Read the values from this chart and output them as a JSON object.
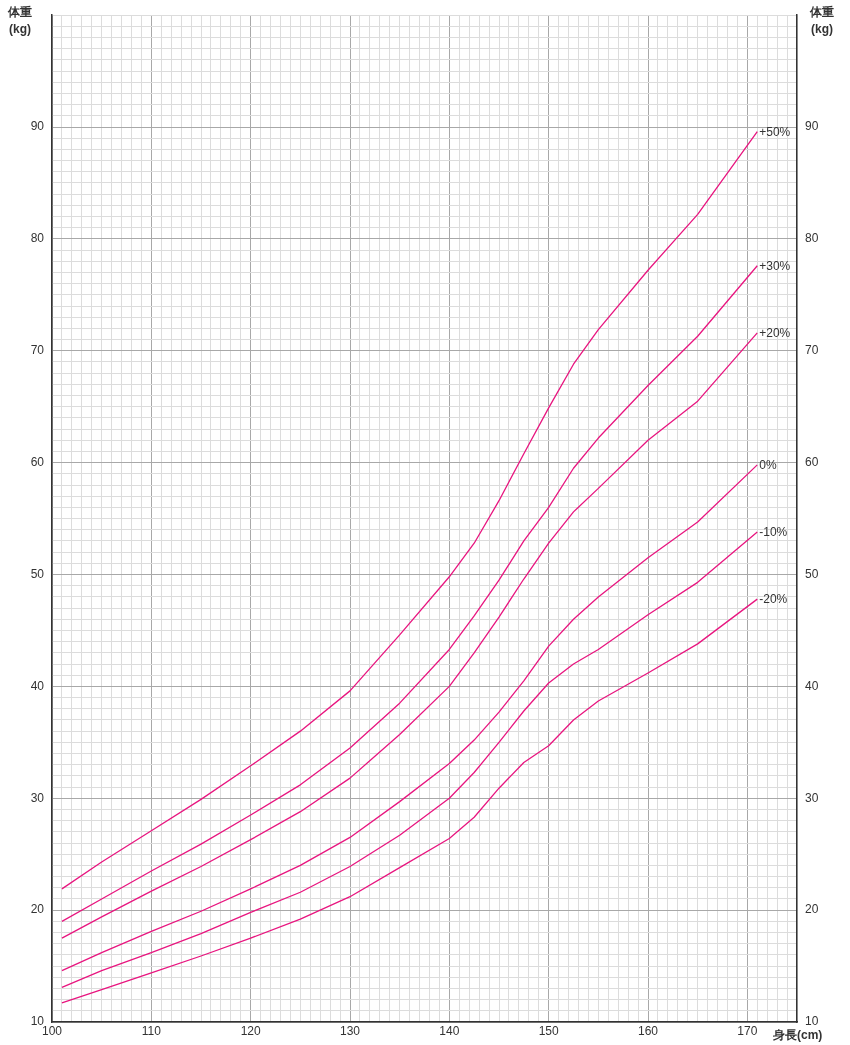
{
  "chart_data": {
    "type": "line",
    "xlabel": "身長(cm)",
    "ylabel": "体重\n(kg)",
    "y2label": "体重\n(kg)",
    "xlim": [
      100,
      175
    ],
    "ylim": [
      10,
      100
    ],
    "y2lim": [
      10,
      100
    ],
    "xticks": [
      100,
      {
        "value": 101,
        "label": null
      },
      {
        "value": 102,
        "label": null
      },
      {
        "value": 103,
        "label": null
      },
      {
        "value": 104,
        "label": null
      },
      {
        "value": 105,
        "label": null
      },
      {
        "value": 106,
        "label": null
      },
      {
        "value": 107,
        "label": null
      },
      {
        "value": 108,
        "label": null
      },
      {
        "value": 109,
        "label": null
      },
      110,
      {
        "value": 111,
        "label": null
      },
      {
        "value": 112,
        "label": null
      },
      {
        "value": 113,
        "label": null
      },
      {
        "value": 114,
        "label": null
      },
      {
        "value": 115,
        "label": null
      },
      {
        "value": 116,
        "label": null
      },
      {
        "value": 117,
        "label": null
      },
      {
        "value": 118,
        "label": null
      },
      {
        "value": 119,
        "label": null
      },
      120,
      {
        "value": 121,
        "label": null
      },
      {
        "value": 122,
        "label": null
      },
      {
        "value": 123,
        "label": null
      },
      {
        "value": 124,
        "label": null
      },
      {
        "value": 125,
        "label": null
      },
      {
        "value": 126,
        "label": null
      },
      {
        "value": 127,
        "label": null
      },
      {
        "value": 128,
        "label": null
      },
      {
        "value": 129,
        "label": null
      },
      130,
      {
        "value": 131,
        "label": null
      },
      {
        "value": 132,
        "label": null
      },
      {
        "value": 133,
        "label": null
      },
      {
        "value": 134,
        "label": null
      },
      {
        "value": 135,
        "label": null
      },
      {
        "value": 136,
        "label": null
      },
      {
        "value": 137,
        "label": null
      },
      {
        "value": 138,
        "label": null
      },
      {
        "value": 139,
        "label": null
      },
      140,
      {
        "value": 141,
        "label": null
      },
      {
        "value": 142,
        "label": null
      },
      {
        "value": 143,
        "label": null
      },
      {
        "value": 144,
        "label": null
      },
      {
        "value": 145,
        "label": null
      },
      {
        "value": 146,
        "label": null
      },
      {
        "value": 147,
        "label": null
      },
      {
        "value": 148,
        "label": null
      },
      {
        "value": 149,
        "label": null
      },
      150,
      {
        "value": 151,
        "label": null
      },
      {
        "value": 152,
        "label": null
      },
      {
        "value": 153,
        "label": null
      },
      {
        "value": 154,
        "label": null
      },
      {
        "value": 155,
        "label": null
      },
      {
        "value": 156,
        "label": null
      },
      {
        "value": 157,
        "label": null
      },
      {
        "value": 158,
        "label": null
      },
      {
        "value": 159,
        "label": null
      },
      160,
      {
        "value": 161,
        "label": null
      },
      {
        "value": 162,
        "label": null
      },
      {
        "value": 163,
        "label": null
      },
      {
        "value": 164,
        "label": null
      },
      {
        "value": 165,
        "label": null
      },
      {
        "value": 166,
        "label": null
      },
      {
        "value": 167,
        "label": null
      },
      {
        "value": 168,
        "label": null
      },
      {
        "value": 169,
        "label": null
      },
      170,
      {
        "value": 171,
        "label": null
      },
      {
        "value": 172,
        "label": null
      },
      {
        "value": 173,
        "label": null
      },
      {
        "value": 174,
        "label": null
      },
      {
        "value": 175,
        "label": null
      }
    ],
    "yticks": [
      10,
      {
        "value": 11,
        "label": null
      },
      {
        "value": 12,
        "label": null
      },
      {
        "value": 13,
        "label": null
      },
      {
        "value": 14,
        "label": null
      },
      {
        "value": 15,
        "label": null
      },
      {
        "value": 16,
        "label": null
      },
      {
        "value": 17,
        "label": null
      },
      {
        "value": 18,
        "label": null
      },
      {
        "value": 19,
        "label": null
      },
      20,
      {
        "value": 21,
        "label": null
      },
      {
        "value": 22,
        "label": null
      },
      {
        "value": 23,
        "label": null
      },
      {
        "value": 24,
        "label": null
      },
      {
        "value": 25,
        "label": null
      },
      {
        "value": 26,
        "label": null
      },
      {
        "value": 27,
        "label": null
      },
      {
        "value": 28,
        "label": null
      },
      {
        "value": 29,
        "label": null
      },
      30,
      {
        "value": 31,
        "label": null
      },
      {
        "value": 32,
        "label": null
      },
      {
        "value": 33,
        "label": null
      },
      {
        "value": 34,
        "label": null
      },
      {
        "value": 35,
        "label": null
      },
      {
        "value": 36,
        "label": null
      },
      {
        "value": 37,
        "label": null
      },
      {
        "value": 38,
        "label": null
      },
      {
        "value": 39,
        "label": null
      },
      40,
      {
        "value": 41,
        "label": null
      },
      {
        "value": 42,
        "label": null
      },
      {
        "value": 43,
        "label": null
      },
      {
        "value": 44,
        "label": null
      },
      {
        "value": 45,
        "label": null
      },
      {
        "value": 46,
        "label": null
      },
      {
        "value": 47,
        "label": null
      },
      {
        "value": 48,
        "label": null
      },
      {
        "value": 49,
        "label": null
      },
      50,
      {
        "value": 51,
        "label": null
      },
      {
        "value": 52,
        "label": null
      },
      {
        "value": 53,
        "label": null
      },
      {
        "value": 54,
        "label": null
      },
      {
        "value": 55,
        "label": null
      },
      {
        "value": 56,
        "label": null
      },
      {
        "value": 57,
        "label": null
      },
      {
        "value": 58,
        "label": null
      },
      {
        "value": 59,
        "label": null
      },
      60,
      {
        "value": 61,
        "label": null
      },
      {
        "value": 62,
        "label": null
      },
      {
        "value": 63,
        "label": null
      },
      {
        "value": 64,
        "label": null
      },
      {
        "value": 65,
        "label": null
      },
      {
        "value": 66,
        "label": null
      },
      {
        "value": 67,
        "label": null
      },
      {
        "value": 68,
        "label": null
      },
      {
        "value": 69,
        "label": null
      },
      70,
      {
        "value": 71,
        "label": null
      },
      {
        "value": 72,
        "label": null
      },
      {
        "value": 73,
        "label": null
      },
      {
        "value": 74,
        "label": null
      },
      {
        "value": 75,
        "label": null
      },
      {
        "value": 76,
        "label": null
      },
      {
        "value": 77,
        "label": null
      },
      {
        "value": 78,
        "label": null
      },
      {
        "value": 79,
        "label": null
      },
      80,
      {
        "value": 81,
        "label": null
      },
      {
        "value": 82,
        "label": null
      },
      {
        "value": 83,
        "label": null
      },
      {
        "value": 84,
        "label": null
      },
      {
        "value": 85,
        "label": null
      },
      {
        "value": 86,
        "label": null
      },
      {
        "value": 87,
        "label": null
      },
      {
        "value": 88,
        "label": null
      },
      {
        "value": 89,
        "label": null
      },
      90,
      {
        "value": 91,
        "label": null
      },
      {
        "value": 92,
        "label": null
      },
      {
        "value": 93,
        "label": null
      },
      {
        "value": 94,
        "label": null
      },
      {
        "value": 95,
        "label": null
      },
      {
        "value": 96,
        "label": null
      },
      {
        "value": 97,
        "label": null
      },
      {
        "value": 98,
        "label": null
      },
      {
        "value": 99,
        "label": null
      },
      {
        "value": 100,
        "label": null
      }
    ],
    "y2ticks": [
      10,
      20,
      30,
      40,
      50,
      60,
      70,
      80,
      90
    ],
    "x": [
      101,
      105,
      110,
      115,
      120,
      125,
      130,
      135,
      140,
      142.5,
      145,
      147.5,
      150,
      152.5,
      155,
      160,
      165,
      171
    ],
    "series": [
      {
        "name": "+50%",
        "color": "#e8157f",
        "values": [
          21.9,
          24.3,
          27.1,
          29.9,
          32.9,
          36.0,
          39.6,
          44.6,
          49.8,
          52.8,
          56.6,
          60.8,
          64.9,
          68.8,
          71.9,
          77.2,
          82.2,
          89.6
        ]
      },
      {
        "name": "+30%",
        "color": "#e8157f",
        "values": [
          19.0,
          21.0,
          23.5,
          25.9,
          28.5,
          31.2,
          34.5,
          38.5,
          43.3,
          46.3,
          49.5,
          53.0,
          56.0,
          59.5,
          62.2,
          66.9,
          71.3,
          77.6
        ]
      },
      {
        "name": "+20%",
        "color": "#e8157f",
        "values": [
          17.5,
          19.4,
          21.7,
          23.9,
          26.3,
          28.8,
          31.8,
          35.7,
          40.0,
          43.0,
          46.2,
          49.6,
          52.8,
          55.6,
          57.7,
          62.0,
          65.5,
          71.6
        ]
      },
      {
        "name": "0%",
        "color": "#e8157f",
        "values": [
          14.6,
          16.2,
          18.1,
          19.9,
          21.9,
          24.0,
          26.5,
          29.7,
          33.1,
          35.2,
          37.7,
          40.5,
          43.6,
          46.0,
          48.0,
          51.5,
          54.7,
          59.8
        ]
      },
      {
        "name": "-10%",
        "color": "#e8157f",
        "values": [
          13.1,
          14.6,
          16.2,
          17.9,
          19.8,
          21.6,
          23.9,
          26.7,
          30.0,
          32.3,
          35.0,
          37.8,
          40.3,
          42.0,
          43.3,
          46.4,
          49.3,
          53.8
        ]
      },
      {
        "name": "-20%",
        "color": "#e8157f",
        "values": [
          11.7,
          12.9,
          14.4,
          15.9,
          17.5,
          19.2,
          21.2,
          23.8,
          26.4,
          28.3,
          30.9,
          33.2,
          34.7,
          37.0,
          38.7,
          41.2,
          43.8,
          47.8
        ]
      }
    ],
    "grid": true,
    "legend": false,
    "marker": "none",
    "line_style": "solid"
  }
}
